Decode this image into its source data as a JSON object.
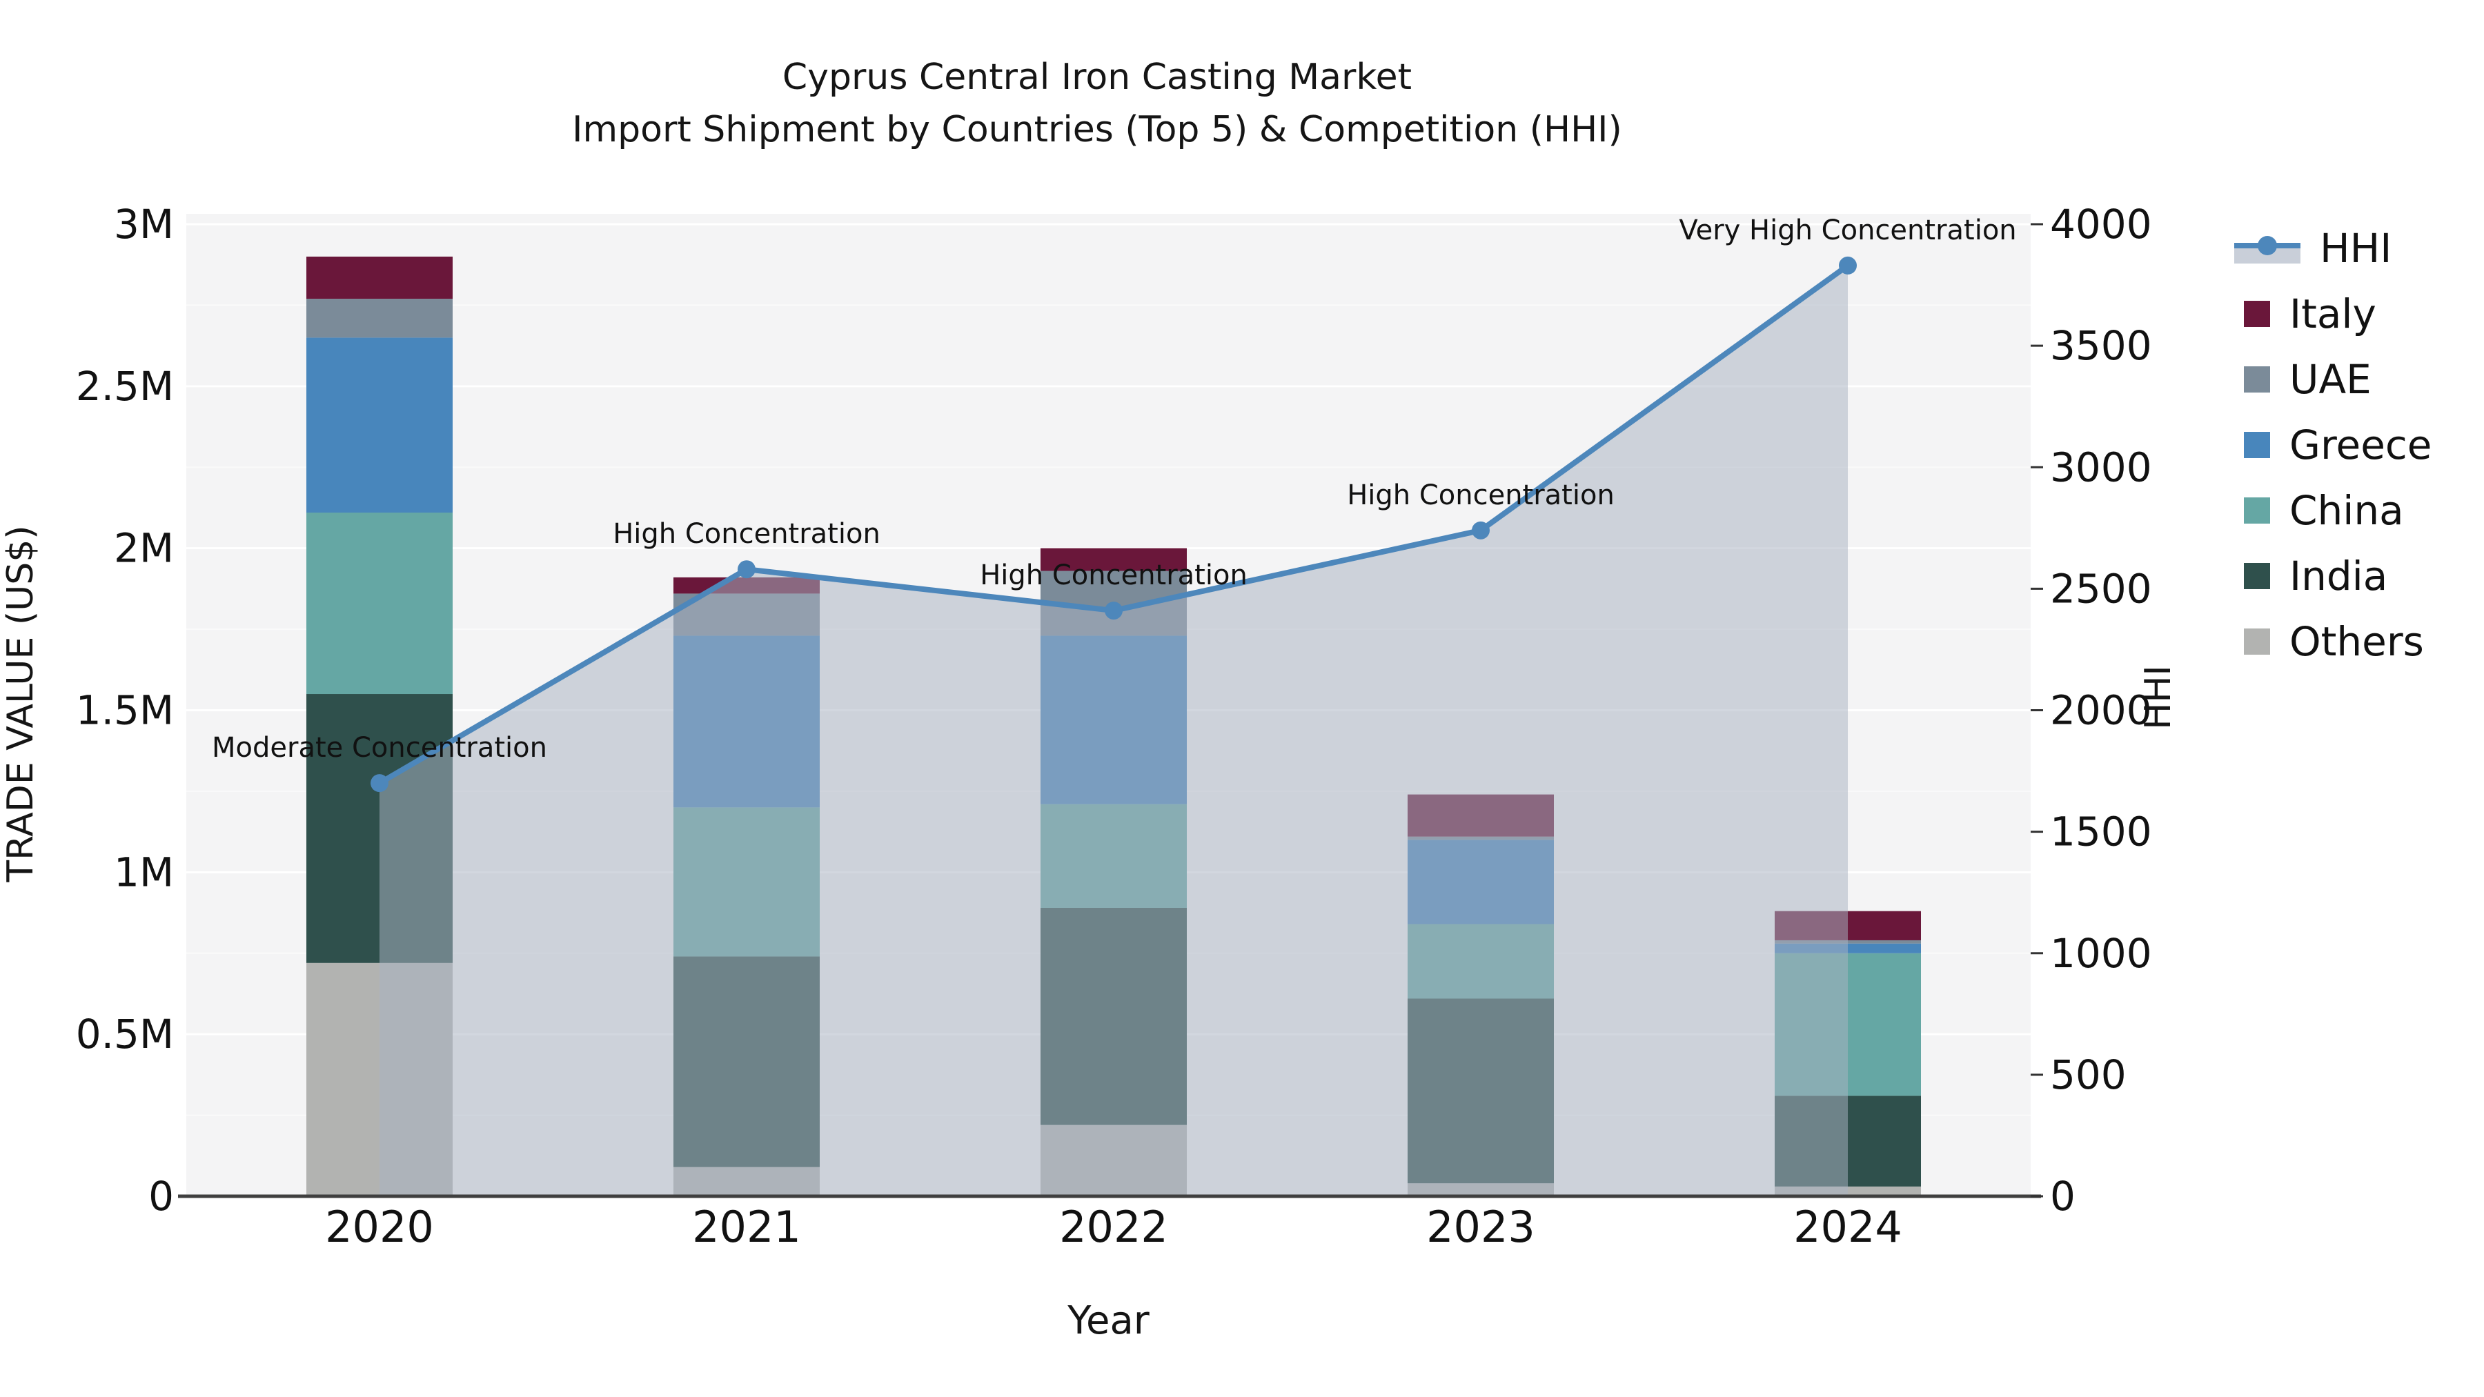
{
  "title": {
    "line1": "Cyprus Central Iron Casting Market",
    "line2": "Import Shipment by Countries (Top 5) & Competition (HHI)"
  },
  "axes": {
    "left": {
      "label": "TRADE VALUE (US$)",
      "tick_labels": [
        "0",
        "0.5M",
        "1M",
        "1.5M",
        "2M",
        "2.5M",
        "3M"
      ],
      "tick_values": [
        0,
        500000,
        1000000,
        1500000,
        2000000,
        2500000,
        3000000
      ],
      "max": 3000000
    },
    "right": {
      "label": "HHI",
      "tick_labels": [
        "0",
        "500",
        "1000",
        "1500",
        "2000",
        "2500",
        "3000",
        "3500",
        "4000"
      ],
      "tick_values": [
        0,
        500,
        1000,
        1500,
        2000,
        2500,
        3000,
        3500,
        4000
      ],
      "max": 4000
    },
    "x": {
      "label": "Year",
      "tick_labels": [
        "2020",
        "2021",
        "2022",
        "2023",
        "2024"
      ]
    }
  },
  "legend": {
    "items": [
      {
        "label": "HHI",
        "type": "line",
        "color": "#4d87bb"
      },
      {
        "label": "Italy",
        "type": "swatch",
        "color": "#6a173a"
      },
      {
        "label": "UAE",
        "type": "swatch",
        "color": "#7b8b99"
      },
      {
        "label": "Greece",
        "type": "swatch",
        "color": "#4886bc"
      },
      {
        "label": "China",
        "type": "swatch",
        "color": "#65a7a4"
      },
      {
        "label": "India",
        "type": "swatch",
        "color": "#2f504c"
      },
      {
        "label": "Others",
        "type": "swatch",
        "color": "#b2b3b1"
      }
    ]
  },
  "chart_data": {
    "type": "bar+line",
    "title": "Cyprus Central Iron Casting Market — Import Shipment by Countries (Top 5) & Competition (HHI)",
    "categories": [
      "2020",
      "2021",
      "2022",
      "2023",
      "2024"
    ],
    "xlabel": "Year",
    "ylabel_left": "TRADE VALUE (US$)",
    "ylabel_right": "HHI",
    "ylim_left": [
      0,
      3000000
    ],
    "ylim_right": [
      0,
      4000
    ],
    "grid": "horizontal",
    "legend_position": "right",
    "series": [
      {
        "name": "Others",
        "color": "#b2b3b1",
        "values": [
          720000,
          90000,
          220000,
          40000,
          30000
        ]
      },
      {
        "name": "India",
        "color": "#2f504c",
        "values": [
          830000,
          650000,
          670000,
          570000,
          280000
        ]
      },
      {
        "name": "China",
        "color": "#65a7a4",
        "values": [
          560000,
          460000,
          320000,
          230000,
          440000
        ]
      },
      {
        "name": "Greece",
        "color": "#4886bc",
        "values": [
          540000,
          530000,
          520000,
          260000,
          30000
        ]
      },
      {
        "name": "UAE",
        "color": "#7b8b99",
        "values": [
          120000,
          130000,
          200000,
          10000,
          10000
        ]
      },
      {
        "name": "Italy",
        "color": "#6a173a",
        "values": [
          130000,
          50000,
          70000,
          130000,
          90000
        ]
      }
    ],
    "line_series": {
      "name": "HHI",
      "axis": "right",
      "color": "#4d87bb",
      "area_fill": "rgba(168,178,193,0.52)",
      "values": [
        1700,
        2580,
        2410,
        2740,
        3830
      ]
    },
    "annotations": [
      {
        "category": "2020",
        "text": "Moderate Concentration"
      },
      {
        "category": "2021",
        "text": "High Concentration"
      },
      {
        "category": "2022",
        "text": "High Concentration"
      },
      {
        "category": "2023",
        "text": "High Concentration"
      },
      {
        "category": "2024",
        "text": "Very High Concentration"
      }
    ]
  },
  "colors": {
    "plot_background": "#f4f4f5",
    "gridline": "#ffffff",
    "axis_line": "#3f3f3f",
    "text": "#111111"
  }
}
